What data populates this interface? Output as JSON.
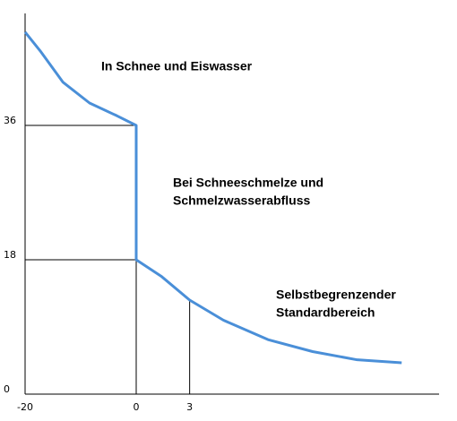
{
  "chart_data": {
    "type": "line",
    "x": [
      -20,
      -17.3,
      -13.2,
      -8.4,
      -3.5,
      0,
      0,
      1.4,
      3,
      4.9,
      7.4,
      9.9,
      12.4,
      14.9
    ],
    "values": [
      48.5,
      46,
      41.8,
      39,
      37.3,
      36,
      18,
      15.8,
      12.6,
      9.9,
      7.3,
      5.7,
      4.6,
      4.2
    ],
    "color": "#4a8fd8",
    "xlim": [
      -20,
      17
    ],
    "xticks": [
      -20,
      0,
      3
    ],
    "ylim": [
      0,
      51
    ],
    "yticks": [
      0,
      18,
      36
    ],
    "grid": false,
    "annotations": [
      [
        "In Schnee und Eiswasser"
      ],
      [
        "Bei Schneeschmelze und",
        "Schmelzwasserabfluss"
      ],
      [
        "Selbstbegrenzender",
        "Standardbereich"
      ]
    ]
  }
}
